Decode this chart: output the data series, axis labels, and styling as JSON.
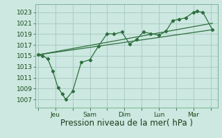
{
  "background_color": "#cce8e0",
  "grid_color": "#aaccc4",
  "line_color": "#2d6e3e",
  "ylim": [
    1005.5,
    1024.5
  ],
  "yticks": [
    1007,
    1009,
    1011,
    1013,
    1015,
    1017,
    1019,
    1021,
    1023
  ],
  "xlabel": "Pression niveau de la mer( hPa )",
  "xlabel_fontsize": 8.5,
  "tick_fontsize": 6.5,
  "x_tick_vals": [
    0,
    1,
    2,
    3,
    4,
    5,
    6,
    7,
    8,
    9,
    10
  ],
  "x_tick_labels_list": [
    "",
    "Jeu",
    "",
    "Sam",
    "",
    "Dim",
    "",
    "Lun",
    "",
    "Mar",
    ""
  ],
  "xlim": [
    -0.15,
    10.4
  ],
  "main_line_x": [
    0.0,
    0.25,
    0.55,
    0.85,
    1.15,
    1.4,
    1.6,
    2.0,
    2.5,
    3.0,
    3.5,
    4.0,
    4.4,
    4.85,
    5.3,
    5.7,
    6.1,
    6.5,
    7.0,
    7.4,
    7.8,
    8.15,
    8.55,
    9.0,
    9.2,
    9.55,
    10.1
  ],
  "main_line_y": [
    1015.2,
    1015.0,
    1014.5,
    1012.2,
    1009.2,
    1008.0,
    1007.0,
    1008.5,
    1013.8,
    1014.3,
    1016.8,
    1019.1,
    1019.0,
    1019.4,
    1017.2,
    1018.0,
    1019.4,
    1019.1,
    1018.8,
    1019.5,
    1021.5,
    1021.7,
    1022.0,
    1023.0,
    1023.2,
    1023.0,
    1019.8
  ],
  "trend1_x": [
    0.0,
    10.1
  ],
  "trend1_y": [
    1015.2,
    1019.8
  ],
  "trend2_x": [
    0.0,
    10.1
  ],
  "trend2_y": [
    1015.2,
    1021.0
  ]
}
